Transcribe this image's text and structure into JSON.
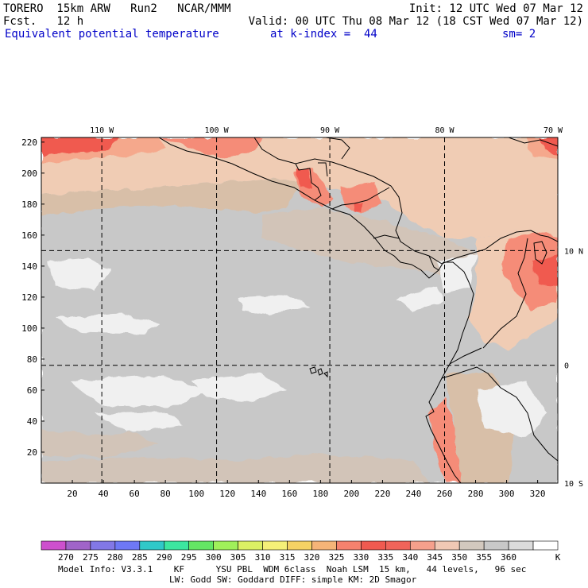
{
  "header": {
    "line1_left": "TORERO  15km ARW   Run2   NCAR/MMM",
    "line1_right": "Init: 12 UTC Wed 07 Mar 12",
    "line2_left": "Fcst.   12 h",
    "line2_right": "Valid: 00 UTC Thu 08 Mar 12 (18 CST Wed 07 Mar 12)",
    "field_name": "Equivalent potential temperature",
    "k_index_label": "at k-index =  44",
    "smoothing_label": "sm= 2"
  },
  "map": {
    "top_longitude_labels": [
      "110 W",
      "100 W",
      "90 W",
      "80 W",
      "70 W"
    ],
    "right_latitude_labels": [
      "10 N",
      "0",
      "10 S"
    ],
    "left_grid_labels": [
      "220",
      "200",
      "180",
      "160",
      "140",
      "120",
      "100",
      "80",
      "60",
      "40",
      "20"
    ],
    "bottom_grid_labels": [
      "20",
      "40",
      "60",
      "80",
      "100",
      "120",
      "140",
      "160",
      "180",
      "200",
      "220",
      "240",
      "260",
      "280",
      "300",
      "320"
    ],
    "grid_range_x": [
      0,
      333
    ],
    "grid_range_y": [
      0,
      223
    ],
    "lon_lines_grid_x": [
      39,
      113,
      186,
      260
    ],
    "lat_lines_grid_y": [
      150,
      76
    ]
  },
  "colorbar": {
    "ticks": [
      "270",
      "275",
      "280",
      "285",
      "290",
      "295",
      "300",
      "305",
      "310",
      "315",
      "320",
      "325",
      "330",
      "335",
      "340",
      "345",
      "350",
      "355",
      "360"
    ],
    "unit": "K",
    "colors": [
      "#cd50cd",
      "#a064c8",
      "#8278e6",
      "#6e78f5",
      "#30c8c8",
      "#3ce6a0",
      "#64e664",
      "#a0f05a",
      "#dcf064",
      "#f5f078",
      "#f5d264",
      "#f5b478",
      "#f5826e",
      "#f05a50",
      "#f0645a",
      "#f5a08c",
      "#f0c8b4",
      "#d2c8be",
      "#c8c8c8",
      "#dcdcdc",
      "#ffffff"
    ]
  },
  "footer": {
    "line1": "Model Info: V3.3.1    KF      YSU PBL  WDM 6class  Noah LSM  15 km,   44 levels,   96 sec",
    "line2": "LW: Godd SW: Goddard DIFF: simple KM: 2D Smagor"
  },
  "field_colors": {
    "lightest": "#f0f0f0",
    "gray_light": "#d2d2d2",
    "gray": "#c8c8c8",
    "gray_warm": "#d2c4b8",
    "tan": "#d8bfa8",
    "peach": "#f0ccb4",
    "salmon_light": "#f5a88c",
    "salmon": "#f58c78",
    "red": "#f05a50"
  }
}
